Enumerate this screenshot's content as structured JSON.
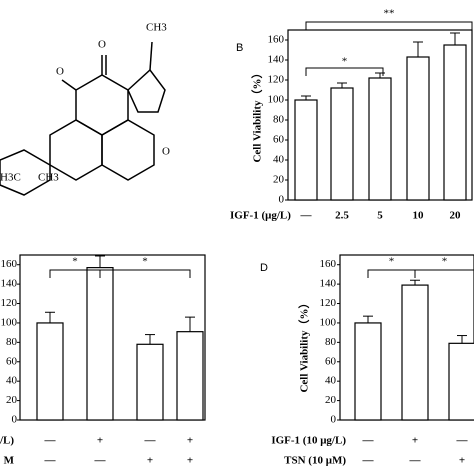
{
  "structure": {
    "labels": [
      "O",
      "O",
      "O",
      "CH3",
      "H3C",
      "CH3"
    ]
  },
  "chart_data": [
    {
      "type": "bar",
      "panel": "B",
      "y_label": "Cell Viability（%）",
      "x_label": "IGF-1 (μg/L)",
      "categories": [
        "—",
        "2.5",
        "5",
        "10",
        "20"
      ],
      "values": [
        100,
        112,
        122,
        143,
        155
      ],
      "errors": [
        4,
        5,
        5,
        15,
        12
      ],
      "color": "#ffffff",
      "ylim": [
        0,
        170
      ],
      "yticks": [
        0,
        20,
        40,
        60,
        80,
        100,
        120,
        140,
        160
      ],
      "annotations": [
        "*",
        "**"
      ]
    },
    {
      "type": "bar",
      "y_label": null,
      "values": [
        100,
        157,
        78,
        91
      ],
      "errors": [
        11,
        12,
        10,
        15
      ],
      "treatments": [
        {
          "name": "g/L)",
          "levels": [
            "—",
            "+",
            "—",
            "+"
          ]
        },
        {
          "name": "M",
          "levels": [
            "—",
            "—",
            "+",
            "+"
          ]
        }
      ],
      "color": "#ffffff",
      "ylim": [
        0,
        170
      ],
      "yticks": [
        0,
        20,
        40,
        60,
        80,
        100,
        120,
        140,
        160
      ],
      "annotations": [
        "*",
        "*"
      ]
    },
    {
      "type": "bar",
      "panel": "D",
      "y_label": "Cell Viability（%）",
      "values": [
        100,
        139,
        79
      ],
      "errors": [
        7,
        5,
        8
      ],
      "treatments": [
        {
          "name": "IGF-1 (10 μg/L)",
          "levels": [
            "—",
            "+",
            "—"
          ]
        },
        {
          "name": "TSN (10 μM)",
          "levels": [
            "—",
            "—",
            "+"
          ]
        }
      ],
      "color": "#ffffff",
      "ylim": [
        0,
        170
      ],
      "yticks": [
        0,
        20,
        40,
        60,
        80,
        100,
        120,
        140,
        160
      ],
      "annotations": [
        "*",
        "*"
      ]
    }
  ]
}
